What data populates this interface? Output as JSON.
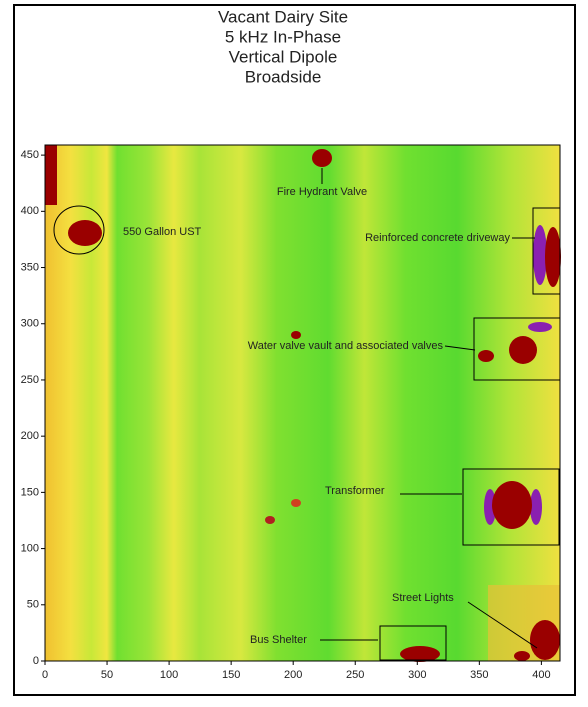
{
  "chart_data": {
    "type": "heatmap",
    "title": [
      "Vacant Dairy Site",
      "5 kHz In-Phase",
      "Vertical Dipole",
      "Broadside"
    ],
    "xlim": [
      0,
      415
    ],
    "xticks": [
      0,
      50,
      100,
      150,
      200,
      250,
      300,
      350,
      400
    ],
    "ylim": [
      0,
      459
    ],
    "yticks": [
      0,
      50,
      100,
      150,
      200,
      250,
      300,
      350,
      400,
      450
    ],
    "annotations": [
      "Fire Hydrant Valve",
      "550 Gallon UST",
      "Reinforced concrete driveway",
      "Water valve vault and associated valves",
      "Transformer",
      "Street Lights",
      "Bus Shelter"
    ]
  }
}
